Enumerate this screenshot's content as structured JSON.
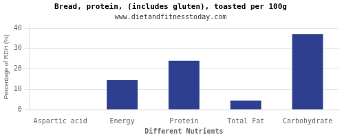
{
  "chart_data": {
    "type": "bar",
    "title": "Bread, protein, (includes gluten), toasted per 100g",
    "subtitle": "www.dietandfitnesstoday.com",
    "xlabel": "Different Nutrients",
    "ylabel": "Percentage of RDH (%)",
    "categories": [
      "Aspartic acid",
      "Energy",
      "Protein",
      "Total Fat",
      "Carbohydrate"
    ],
    "values": [
      0,
      14.5,
      24,
      4.5,
      37
    ],
    "color": "#2e3f8f",
    "ylim": [
      0,
      42
    ],
    "yticks": [
      0,
      10,
      20,
      30,
      40
    ],
    "grid": true
  }
}
